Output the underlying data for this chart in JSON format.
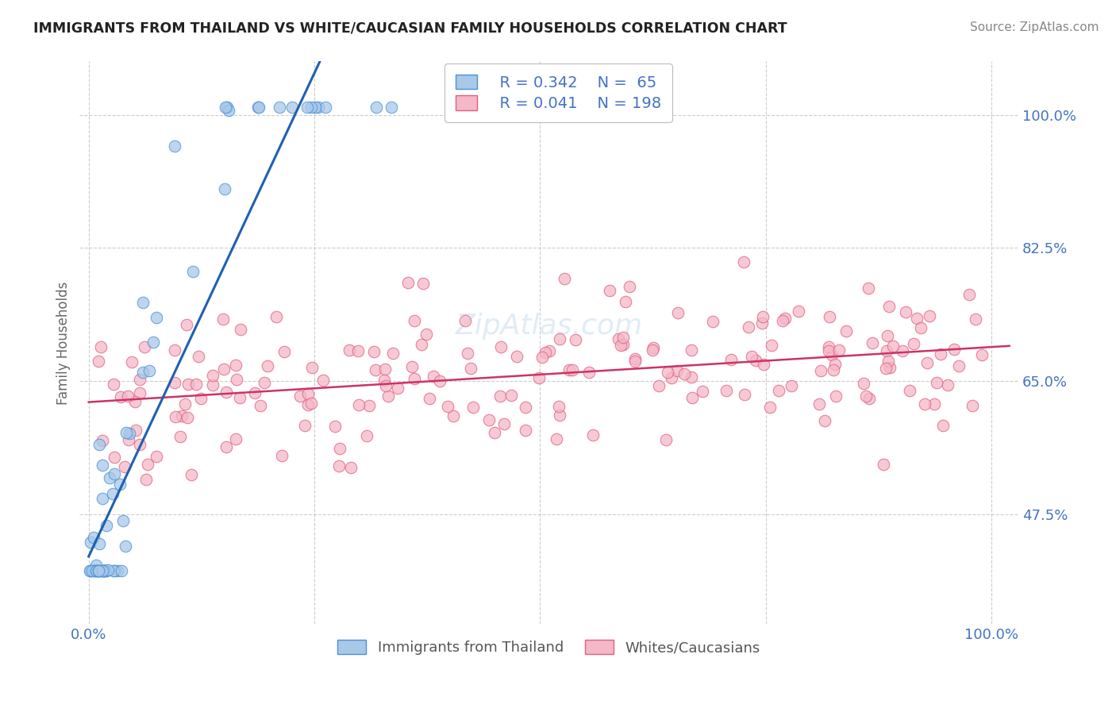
{
  "title": "IMMIGRANTS FROM THAILAND VS WHITE/CAUCASIAN FAMILY HOUSEHOLDS CORRELATION CHART",
  "source": "Source: ZipAtlas.com",
  "ylabel": "Family Households",
  "legend_r1": "R = 0.342",
  "legend_n1": "N =  65",
  "legend_r2": "R = 0.041",
  "legend_n2": "N = 198",
  "blue_fill": "#a8c8e8",
  "blue_edge": "#4a90d9",
  "pink_fill": "#f4b8c8",
  "pink_edge": "#e06080",
  "blue_line_color": "#2060b0",
  "pink_line_color": "#cc3366",
  "background_color": "#ffffff",
  "grid_color": "#cccccc",
  "axis_tick_color": "#4472c4",
  "ylabel_color": "#666666",
  "title_color": "#222222",
  "source_color": "#888888",
  "watermark_color": "#c8ddf0",
  "legend_text_color": "#4472c4",
  "ytick_vals": [
    0.475,
    0.65,
    0.825,
    1.0
  ],
  "ytick_labels": [
    "47.5%",
    "65.0%",
    "82.5%",
    "100.0%"
  ],
  "xtick_vals": [
    0.0,
    0.25,
    0.5,
    0.75,
    1.0
  ],
  "xtick_labels": [
    "0.0%",
    "",
    "",
    "",
    "100.0%"
  ],
  "xlim": [
    -0.01,
    1.03
  ],
  "ylim": [
    0.33,
    1.07
  ],
  "scatter_size": 110,
  "scatter_alpha": 0.75,
  "scatter_lw": 0.8
}
